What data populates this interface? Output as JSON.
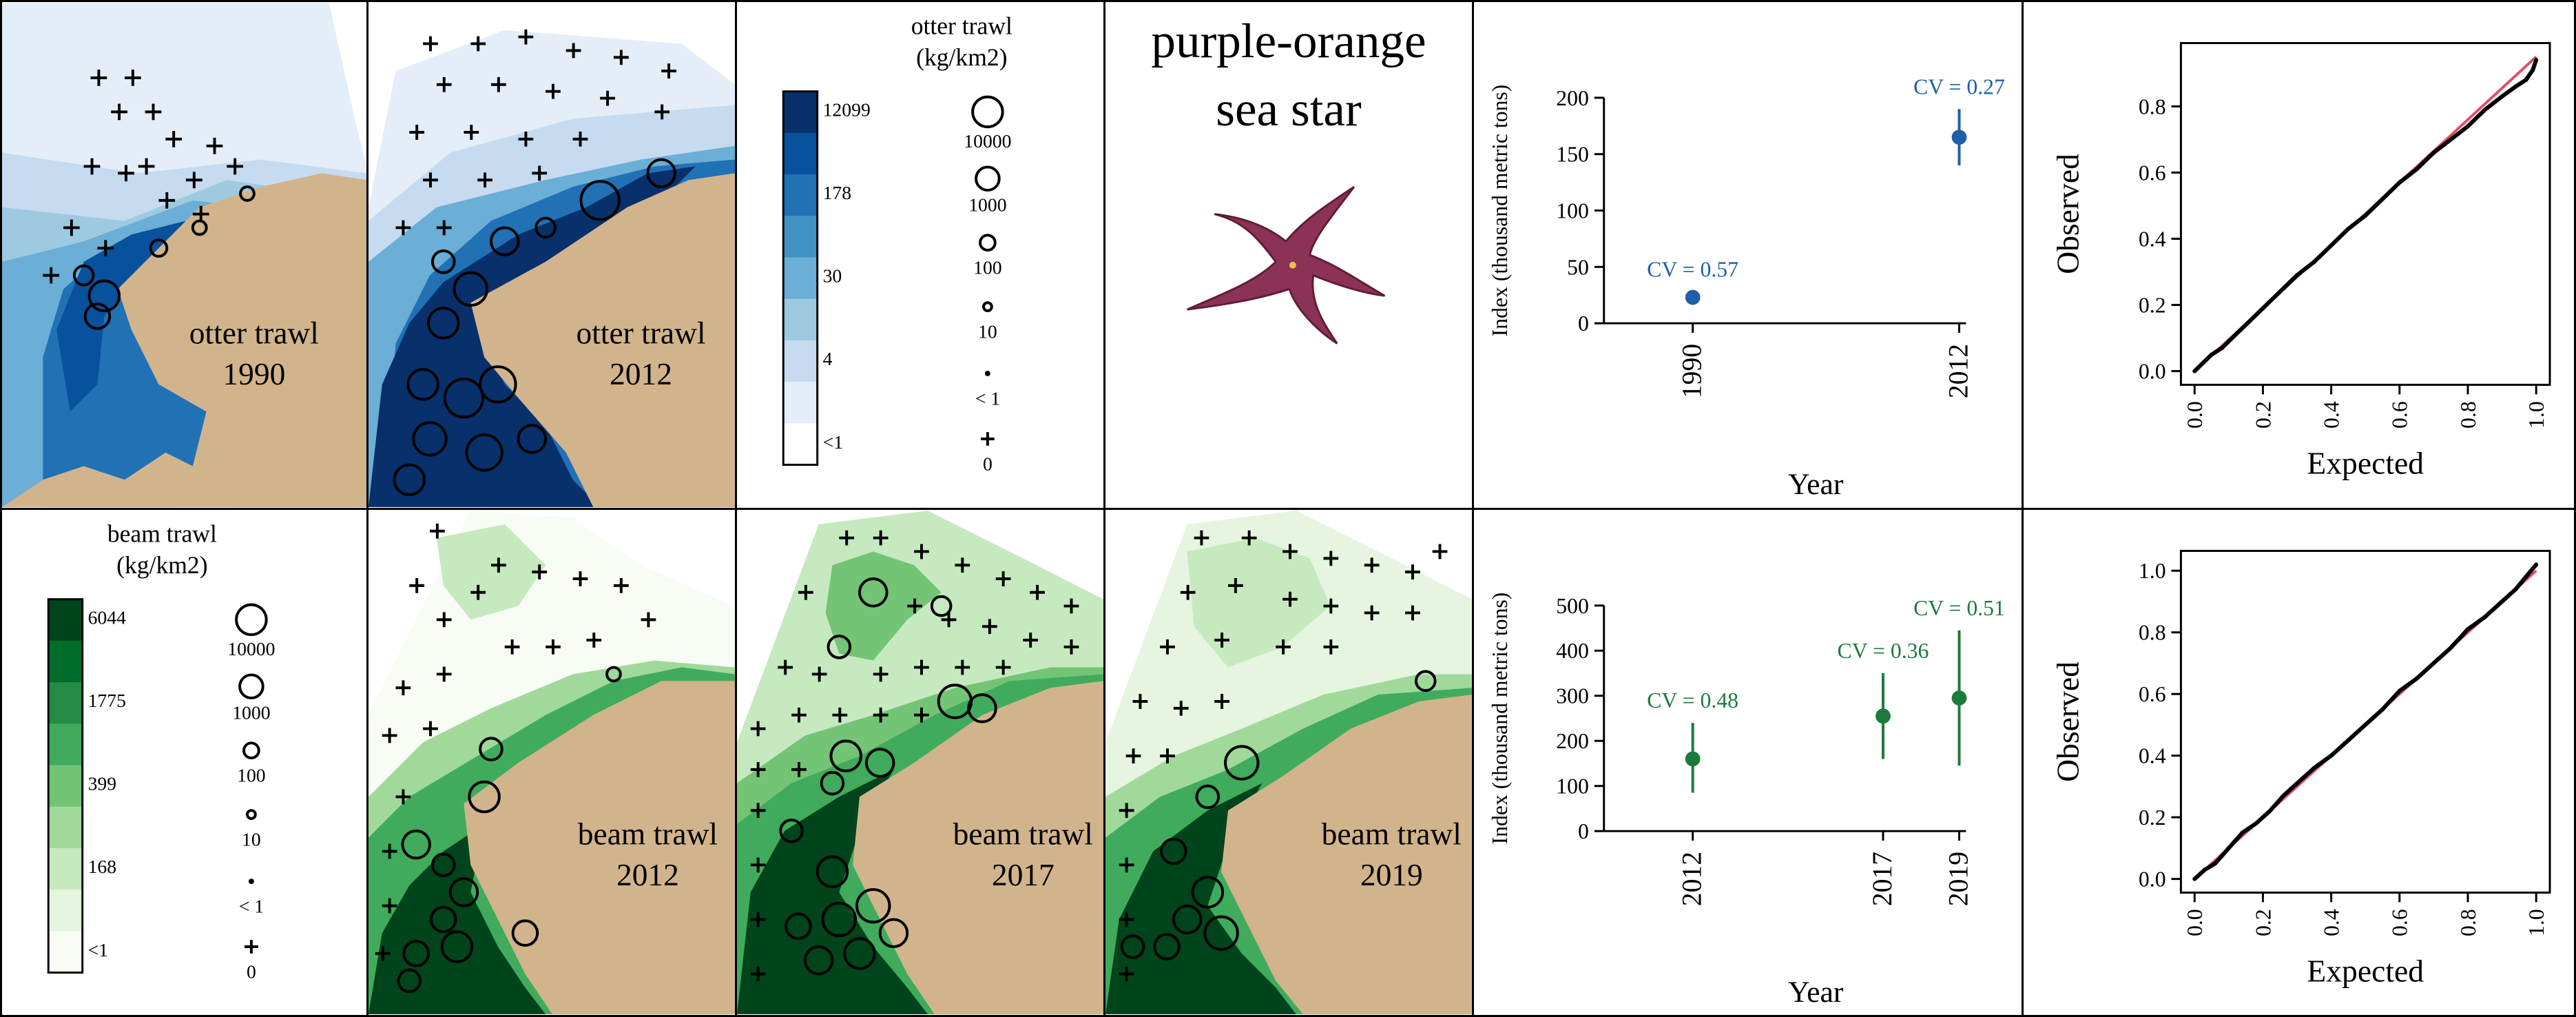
{
  "colors": {
    "otter": [
      "#ffffff",
      "#e4eef8",
      "#c6dbef",
      "#9ecae1",
      "#6baed6",
      "#4292c6",
      "#2171b5",
      "#08519c",
      "#08306b"
    ],
    "beam": [
      "#f7fcf5",
      "#e5f5e0",
      "#c7e9c0",
      "#a1d99b",
      "#74c476",
      "#41ab5d",
      "#238b45",
      "#006d2c",
      "#00441b"
    ],
    "land": "#d2b48c",
    "otter_index": "#1f5fa8",
    "beam_index": "#1e7a3c",
    "qq_line": "#e0506a"
  },
  "maps": {
    "otter_1990": {
      "label_gear": "otter trawl",
      "label_year": "1990"
    },
    "otter_2012": {
      "label_gear": "otter trawl",
      "label_year": "2012"
    },
    "beam_2012": {
      "label_gear": "beam trawl",
      "label_year": "2012"
    },
    "beam_2017": {
      "label_gear": "beam trawl",
      "label_year": "2017"
    },
    "beam_2019": {
      "label_gear": "beam trawl",
      "label_year": "2019"
    }
  },
  "legends": {
    "otter": {
      "title_line1": "otter trawl",
      "title_line2": "(kg/km2)",
      "color_ticks": [
        "12099",
        "178",
        "30",
        "4",
        "<1"
      ],
      "bubble_labels": [
        "10000",
        "1000",
        "100",
        "10",
        "< 1",
        "0"
      ]
    },
    "beam": {
      "title_line1": "beam trawl",
      "title_line2": "(kg/km2)",
      "color_ticks": [
        "6044",
        "1775",
        "399",
        "168",
        "<1"
      ],
      "bubble_labels": [
        "10000",
        "1000",
        "100",
        "10",
        "< 1",
        "0"
      ]
    }
  },
  "species": {
    "name_line1": "purple-orange",
    "name_line2": "sea star",
    "image": "sea-star-photo"
  },
  "chart_data": [
    {
      "type": "scatter",
      "id": "otter_index",
      "ylabel": "Index (thousand metric tons)",
      "xlabel": "Year",
      "x": [
        1990,
        2012
      ],
      "y": [
        23,
        165
      ],
      "ci_low": [
        18,
        140
      ],
      "ci_high": [
        28,
        190
      ],
      "cv_labels": [
        "CV = 0.57",
        "CV = 0.27"
      ],
      "y_ticks": [
        0,
        50,
        100,
        150,
        200
      ],
      "x_ticks": [
        "1990",
        "2012"
      ],
      "ylim": [
        0,
        200
      ]
    },
    {
      "type": "scatter",
      "id": "beam_index",
      "ylabel": "Index (thousand metric tons)",
      "xlabel": "Year",
      "x": [
        2012,
        2017,
        2019
      ],
      "y": [
        160,
        255,
        295
      ],
      "ci_low": [
        85,
        160,
        145
      ],
      "ci_high": [
        240,
        350,
        445
      ],
      "cv_labels": [
        "CV = 0.48",
        "CV = 0.36",
        "CV = 0.51"
      ],
      "y_ticks": [
        0,
        100,
        200,
        300,
        400,
        500
      ],
      "x_ticks": [
        "2012",
        "2017",
        "2019"
      ],
      "ylim": [
        0,
        500
      ]
    },
    {
      "type": "scatter",
      "id": "otter_qq",
      "xlabel": "Expected",
      "ylabel": "Observed",
      "x_ticks": [
        "0.0",
        "0.2",
        "0.4",
        "0.6",
        "0.8",
        "1.0"
      ],
      "y_ticks": [
        "0.0",
        "0.2",
        "0.4",
        "0.6",
        "0.8"
      ],
      "xlim": [
        0,
        1
      ],
      "ylim": [
        0,
        0.95
      ],
      "points_x": [
        0.0,
        0.02,
        0.05,
        0.08,
        0.12,
        0.16,
        0.2,
        0.25,
        0.3,
        0.35,
        0.4,
        0.45,
        0.5,
        0.55,
        0.6,
        0.65,
        0.7,
        0.75,
        0.8,
        0.85,
        0.9,
        0.94,
        0.97,
        0.99,
        1.0
      ],
      "points_y": [
        0.0,
        0.02,
        0.05,
        0.07,
        0.11,
        0.15,
        0.19,
        0.24,
        0.29,
        0.33,
        0.38,
        0.43,
        0.47,
        0.52,
        0.57,
        0.61,
        0.66,
        0.7,
        0.74,
        0.79,
        0.83,
        0.86,
        0.88,
        0.91,
        0.94
      ]
    },
    {
      "type": "scatter",
      "id": "beam_qq",
      "xlabel": "Expected",
      "ylabel": "Observed",
      "x_ticks": [
        "0.0",
        "0.2",
        "0.4",
        "0.6",
        "0.8",
        "1.0"
      ],
      "y_ticks": [
        "0.0",
        "0.2",
        "0.4",
        "0.6",
        "0.8",
        "1.0"
      ],
      "xlim": [
        0,
        1
      ],
      "ylim": [
        0,
        1.02
      ],
      "points_x": [
        0.0,
        0.03,
        0.06,
        0.1,
        0.14,
        0.18,
        0.22,
        0.26,
        0.3,
        0.35,
        0.4,
        0.45,
        0.5,
        0.55,
        0.6,
        0.65,
        0.7,
        0.75,
        0.8,
        0.85,
        0.9,
        0.94,
        0.97,
        1.0
      ],
      "points_y": [
        0.0,
        0.03,
        0.05,
        0.1,
        0.15,
        0.18,
        0.22,
        0.27,
        0.31,
        0.36,
        0.4,
        0.45,
        0.5,
        0.55,
        0.61,
        0.65,
        0.7,
        0.75,
        0.81,
        0.85,
        0.9,
        0.94,
        0.98,
        1.02
      ]
    }
  ]
}
